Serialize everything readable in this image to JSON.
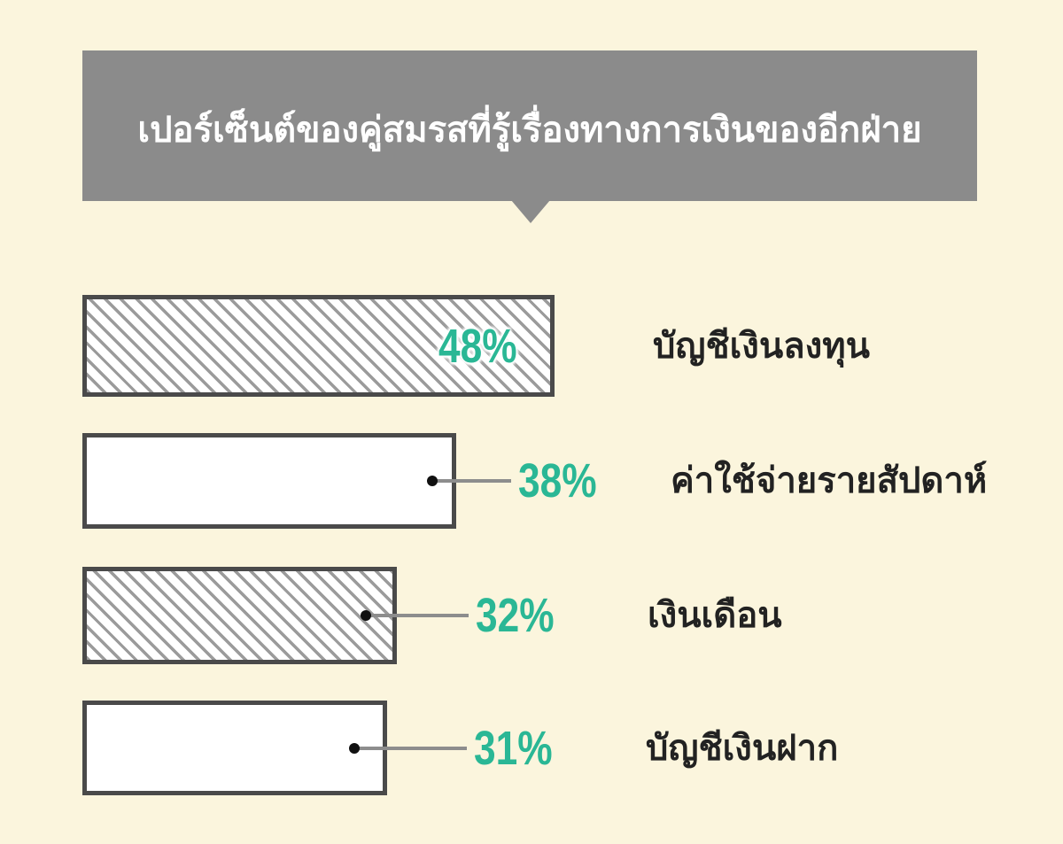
{
  "chart_data": {
    "type": "bar",
    "orientation": "horizontal",
    "title": "เปอร์เซ็นต์ของคู่สมรสที่รู้เรื่องทางการเงินของอีกฝ่าย",
    "unit": "%",
    "categories": [
      "บัญชีเงินลงทุน",
      "ค่าใช้จ่ายรายสัปดาห์",
      "เงินเดือน",
      "บัญชีเงินฝาก"
    ],
    "values": [
      48,
      38,
      32,
      31
    ],
    "value_labels": [
      "48%",
      "38%",
      "32%",
      "31%"
    ],
    "bar_styles": [
      "diagonal-hatch",
      "solid-white",
      "diagonal-hatch",
      "solid-white"
    ],
    "value_label_placement": [
      "inside-bar-right",
      "callout-right",
      "callout-right",
      "callout-right"
    ],
    "grid": false,
    "legend": false,
    "axis_visible": false
  },
  "colors": {
    "background": "#fbf5dd",
    "title_banner": "#8b8b8b",
    "title_text": "#ffffff",
    "accent_value": "#2ab795",
    "bar_border": "#4a4a4a",
    "bar_fill": "#ffffff",
    "hatch_line": "#9b9b9b",
    "callout_line": "#8d8d8d",
    "callout_dot": "#111111",
    "category_text": "#222222"
  }
}
